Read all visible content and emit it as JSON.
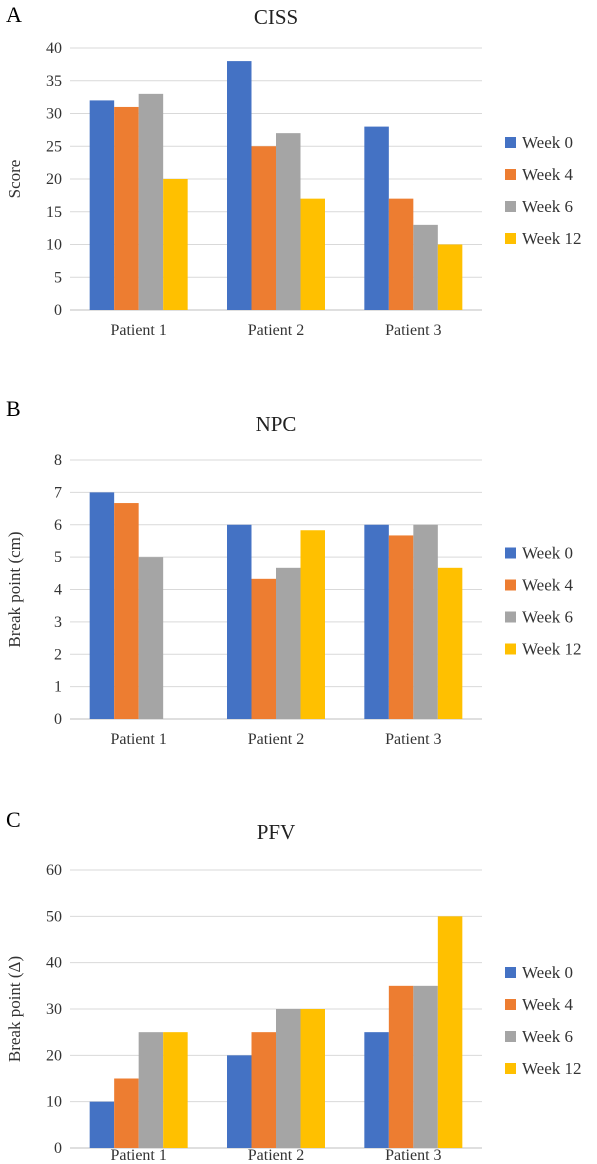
{
  "colors": {
    "week0": "#4472C4",
    "week4": "#ED7D31",
    "week6": "#A5A5A5",
    "week12": "#FFC000"
  },
  "chart_data": [
    {
      "panel": "A",
      "type": "bar",
      "title": "CISS",
      "xlabel": "",
      "ylabel": "Score",
      "ylim": [
        0,
        40
      ],
      "yticks": [
        0,
        5,
        10,
        15,
        20,
        25,
        30,
        35,
        40
      ],
      "grid": true,
      "legend": "right",
      "categories": [
        "Patient 1",
        "Patient 2",
        "Patient 3"
      ],
      "series": [
        {
          "name": "Week 0",
          "values": [
            32,
            38,
            28
          ]
        },
        {
          "name": "Week 4",
          "values": [
            31,
            25,
            17
          ]
        },
        {
          "name": "Week 6",
          "values": [
            33,
            27,
            13
          ]
        },
        {
          "name": "Week 12",
          "values": [
            20,
            17,
            10
          ]
        }
      ]
    },
    {
      "panel": "B",
      "type": "bar",
      "title": "NPC",
      "xlabel": "",
      "ylabel": "Break point (cm)",
      "ylim": [
        0,
        8
      ],
      "yticks": [
        0,
        1,
        2,
        3,
        4,
        5,
        6,
        7,
        8
      ],
      "grid": true,
      "legend": "right",
      "categories": [
        "Patient 1",
        "Patient 2",
        "Patient 3"
      ],
      "series": [
        {
          "name": "Week 0",
          "values": [
            7,
            6,
            6
          ]
        },
        {
          "name": "Week 4",
          "values": [
            6.67,
            4.33,
            5.67
          ]
        },
        {
          "name": "Week 6",
          "values": [
            5,
            4.67,
            6
          ]
        },
        {
          "name": "Week 12",
          "values": [
            0,
            5.83,
            4.67
          ]
        }
      ]
    },
    {
      "panel": "C",
      "type": "bar",
      "title": "PFV",
      "xlabel": "",
      "ylabel": "Break point (Δ)",
      "ylim": [
        0,
        60
      ],
      "yticks": [
        0,
        10,
        20,
        30,
        40,
        50,
        60
      ],
      "grid": true,
      "legend": "right",
      "categories": [
        "Patient 1",
        "Patient 2",
        "Patient 3"
      ],
      "series": [
        {
          "name": "Week 0",
          "values": [
            10,
            20,
            25
          ]
        },
        {
          "name": "Week 4",
          "values": [
            15,
            25,
            35
          ]
        },
        {
          "name": "Week 6",
          "values": [
            25,
            30,
            35
          ]
        },
        {
          "name": "Week 12",
          "values": [
            25,
            30,
            50
          ]
        }
      ]
    }
  ]
}
